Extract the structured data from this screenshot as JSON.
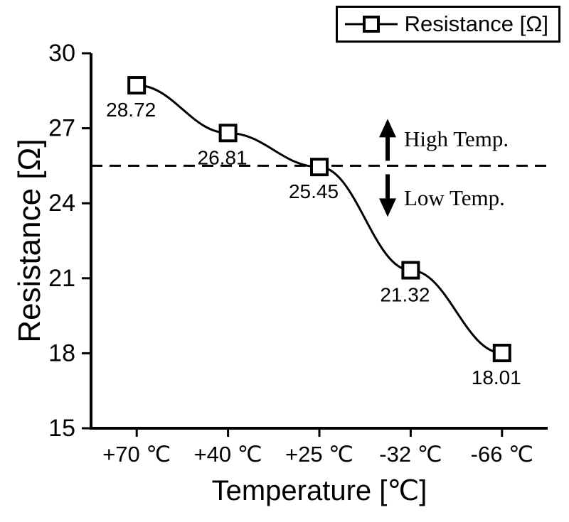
{
  "chart_data": {
    "type": "line",
    "categories": [
      "+70 ℃",
      "+40 ℃",
      "+25 ℃",
      "-32 ℃",
      "-66 ℃"
    ],
    "series": [
      {
        "name": "Resistance [Ω]",
        "values": [
          28.72,
          26.81,
          25.45,
          21.32,
          18.01
        ]
      }
    ],
    "point_labels": [
      "28.72",
      "26.81",
      "25.45",
      "21.32",
      "18.01"
    ],
    "title": "",
    "xlabel": "Temperature [℃]",
    "ylabel": "Resistance [Ω]",
    "ylim": [
      15,
      30
    ],
    "yticks": [
      15,
      18,
      21,
      24,
      27,
      30
    ],
    "grid": false,
    "legend_position": "top-right",
    "reference_line": {
      "y": 25.5,
      "style": "dashed",
      "meaning": "High/Low temperature threshold"
    },
    "annotations": [
      {
        "text": "High Temp.",
        "arrow": "up",
        "side": "above reference line"
      },
      {
        "text": "Low Temp.",
        "arrow": "down",
        "side": "below reference line"
      }
    ],
    "colors": {
      "line": "#000000",
      "marker_fill": "#ffffff",
      "marker_stroke": "#000000",
      "text": "#000000"
    }
  },
  "legend": {
    "label": "Resistance [Ω]"
  },
  "axes": {
    "x_title": "Temperature [℃]",
    "y_title": "Resistance [Ω]"
  },
  "annotations": {
    "high_temp": "High Temp.",
    "low_temp": "Low Temp."
  }
}
